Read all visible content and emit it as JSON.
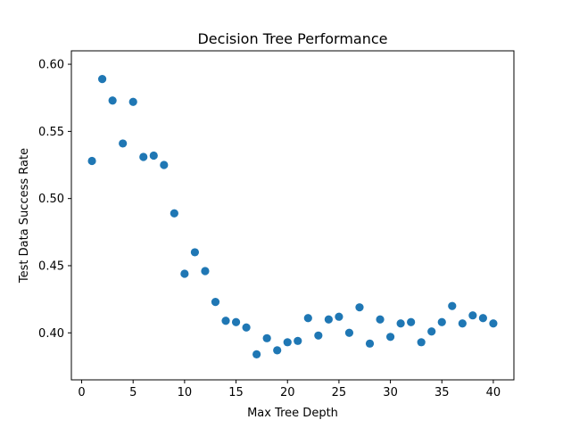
{
  "chart_data": {
    "type": "scatter",
    "title": "Decision Tree Performance",
    "xlabel": "Max Tree Depth",
    "ylabel": "Test Data Success Rate",
    "xlim": [
      -1,
      42
    ],
    "ylim": [
      0.365,
      0.61
    ],
    "xticks": [
      0,
      5,
      10,
      15,
      20,
      25,
      30,
      35,
      40
    ],
    "yticks": [
      0.4,
      0.45,
      0.5,
      0.55,
      0.6
    ],
    "xtick_labels": [
      "0",
      "5",
      "10",
      "15",
      "20",
      "25",
      "30",
      "35",
      "40"
    ],
    "ytick_labels": [
      "0.40",
      "0.45",
      "0.50",
      "0.55",
      "0.60"
    ],
    "grid": false,
    "marker_color": "#1f77b4",
    "x": [
      1,
      2,
      3,
      4,
      5,
      6,
      7,
      8,
      9,
      10,
      11,
      12,
      13,
      14,
      15,
      16,
      17,
      18,
      19,
      20,
      21,
      22,
      23,
      24,
      25,
      26,
      27,
      28,
      29,
      30,
      31,
      32,
      33,
      34,
      35,
      36,
      37,
      38,
      39,
      40
    ],
    "y": [
      0.528,
      0.589,
      0.573,
      0.541,
      0.572,
      0.531,
      0.532,
      0.525,
      0.489,
      0.444,
      0.46,
      0.446,
      0.423,
      0.409,
      0.408,
      0.404,
      0.384,
      0.396,
      0.387,
      0.393,
      0.394,
      0.411,
      0.398,
      0.41,
      0.412,
      0.4,
      0.419,
      0.392,
      0.41,
      0.397,
      0.407,
      0.408,
      0.393,
      0.401,
      0.408,
      0.42,
      0.407,
      0.413,
      0.411,
      0.407
    ]
  }
}
